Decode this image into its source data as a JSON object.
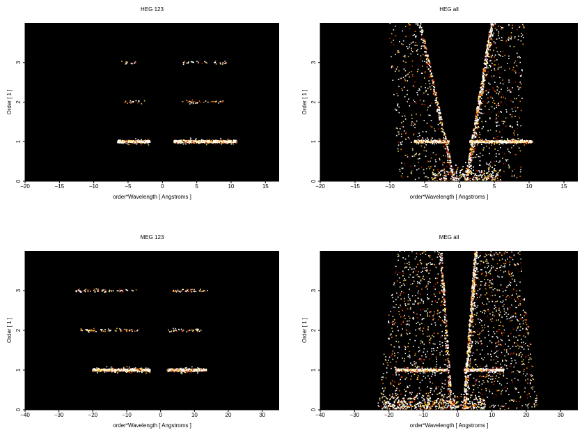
{
  "chart_data": [
    {
      "type": "heatmap",
      "title": "HEG 123",
      "xlabel": "order*Wavelength [ Angstroms ]",
      "ylabel": "Order [ 1 ]",
      "xlim": [
        -20,
        17
      ],
      "ylim": [
        0,
        4
      ],
      "xticks": [
        -20,
        -15,
        -10,
        -5,
        0,
        5,
        10,
        15
      ],
      "yticks": [
        0,
        1,
        2,
        3
      ],
      "background": "#000000",
      "colormap": [
        "#5a0000",
        "#c21a00",
        "#ff7a00",
        "#ffd23a",
        "#ffffff"
      ],
      "bands": [
        {
          "order": 1,
          "x_ranges": [
            [
              -6.5,
              -1.8
            ],
            [
              1.7,
              10.8
            ]
          ],
          "intensity": "high"
        },
        {
          "order": 2,
          "x_ranges": [
            [
              -5.5,
              -2.0
            ],
            [
              2.5,
              9.0
            ]
          ],
          "intensity": "sparse"
        },
        {
          "order": 3,
          "x_ranges": [
            [
              -6.0,
              -3.5
            ],
            [
              3.0,
              9.5
            ]
          ],
          "intensity": "sparse"
        }
      ],
      "cone": false
    },
    {
      "type": "heatmap",
      "title": "HEG all",
      "xlabel": "order*Wavelength [ Angstroms ]",
      "ylabel": "Order [ 1 ]",
      "xlim": [
        -20,
        17
      ],
      "ylim": [
        0,
        4
      ],
      "xticks": [
        -20,
        -15,
        -10,
        -5,
        0,
        5,
        10,
        15
      ],
      "yticks": [
        0,
        1,
        2,
        3
      ],
      "background": "#000000",
      "colormap": [
        "#5a0000",
        "#c21a00",
        "#ff7a00",
        "#ffd23a",
        "#ffffff"
      ],
      "bands": [
        {
          "order": 1,
          "x_ranges": [
            [
              -6.5,
              -1.5
            ],
            [
              1.5,
              10.5
            ]
          ],
          "intensity": "high"
        }
      ],
      "cone": true,
      "cone_right_edge": [
        [
          0.8,
          0.0
        ],
        [
          4.5,
          4.0
        ]
      ],
      "cone_left_edge": [
        [
          -0.6,
          0.0
        ],
        [
          -5.5,
          4.0
        ]
      ]
    },
    {
      "type": "heatmap",
      "title": "MEG 123",
      "xlabel": "order*Wavelength [ Angstroms ]",
      "ylabel": "Order [ 1 ]",
      "xlim": [
        -40,
        35
      ],
      "ylim": [
        0,
        4
      ],
      "xticks": [
        -40,
        -30,
        -20,
        -10,
        0,
        10,
        20,
        30
      ],
      "yticks": [
        0,
        1,
        2,
        3
      ],
      "background": "#000000",
      "colormap": [
        "#5a0000",
        "#c21a00",
        "#ff7a00",
        "#ffd23a",
        "#ffffff"
      ],
      "bands": [
        {
          "order": 1,
          "x_ranges": [
            [
              -20,
              -3.0
            ],
            [
              2.0,
              13.5
            ]
          ],
          "intensity": "high"
        },
        {
          "order": 2,
          "x_ranges": [
            [
              -24,
              -6.0
            ],
            [
              2.0,
              12.0
            ]
          ],
          "intensity": "sparse"
        },
        {
          "order": 3,
          "x_ranges": [
            [
              -25,
              -7.0
            ],
            [
              3.0,
              14.0
            ]
          ],
          "intensity": "sparse"
        }
      ],
      "cone": false
    },
    {
      "type": "heatmap",
      "title": "MEG all",
      "xlabel": "order*Wavelength [ Angstroms ]",
      "ylabel": "Order [ 1 ]",
      "xlim": [
        -40,
        35
      ],
      "ylim": [
        0,
        4
      ],
      "xticks": [
        -40,
        -30,
        -20,
        -10,
        0,
        10,
        20,
        30
      ],
      "yticks": [
        0,
        1,
        2,
        3
      ],
      "background": "#000000",
      "colormap": [
        "#5a0000",
        "#c21a00",
        "#ff7a00",
        "#ffd23a",
        "#ffffff"
      ],
      "bands": [
        {
          "order": 1,
          "x_ranges": [
            [
              -18,
              -3.0
            ],
            [
              2.0,
              13.5
            ]
          ],
          "intensity": "high"
        }
      ],
      "cone": true,
      "cone_right_edge": [
        [
          1.5,
          0.0
        ],
        [
          5.0,
          4.0
        ]
      ],
      "cone_left_edge": [
        [
          -1.5,
          0.0
        ],
        [
          -4.5,
          4.0
        ]
      ]
    }
  ]
}
